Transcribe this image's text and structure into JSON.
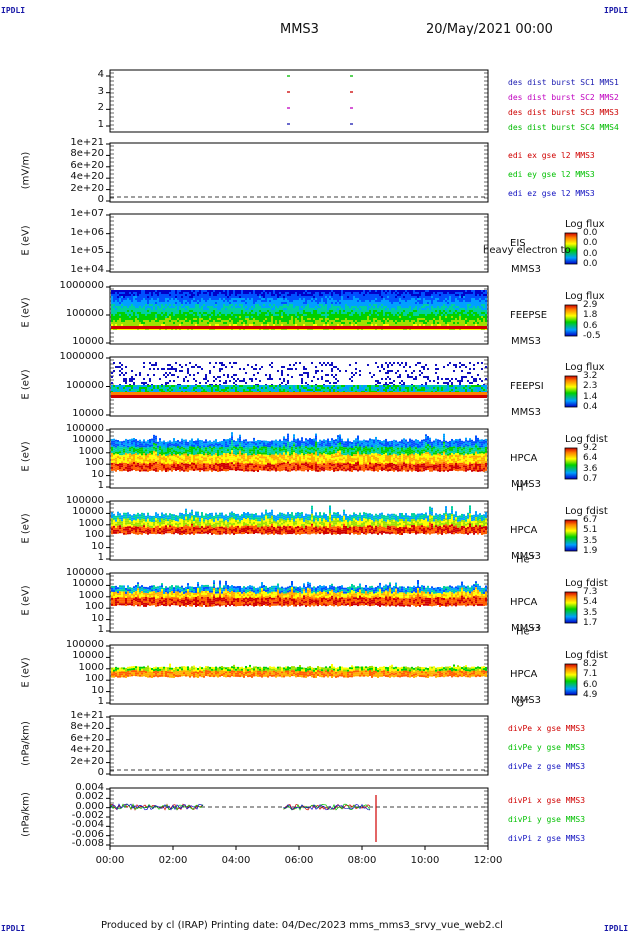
{
  "corners": {
    "tl": "IPDLI",
    "tr": "IPDLI",
    "bl": "IPDLI",
    "br": "IPDLI"
  },
  "header": {
    "spacecraft": "MMS3",
    "datetime": "20/May/2021 00:00"
  },
  "footer": {
    "text": "Produced by cl (IRAP)    Printing date: 04/Dec/2023    mms_mms3_srvy_vue_web2.cl"
  },
  "x_ticks": [
    "00:00",
    "02:00",
    "04:00",
    "06:00",
    "08:00",
    "10:00",
    "12:00"
  ],
  "colors": {
    "c1": "#1a1ab0",
    "c2": "#c000c0",
    "c3": "#cc0000",
    "c4": "#00bb00",
    "bx": "#d00000",
    "by": "#00c000",
    "bz": "#1010c0"
  },
  "panels": {
    "p1": {
      "ticks": [
        "4",
        "3",
        "2",
        "1"
      ],
      "legend": [
        "des dist burst SC1 MMS1",
        "des dist burst SC2 MMS2",
        "des dist burst SC3 MMS3",
        "des dist burst SC4 MMS4"
      ]
    },
    "p2": {
      "ylabel": "(mV/m)",
      "ticks": [
        "1e+21",
        "8e+20",
        "6e+20",
        "4e+20",
        "2e+20",
        "0"
      ],
      "legend": [
        "edi ex gse l2 MMS3",
        "edi ey gse l2 MMS3",
        "edi ez gse l2 MMS3"
      ]
    },
    "p3": {
      "ylabel": "E (eV)",
      "ticks": [
        "1e+07",
        "1e+06",
        "1e+05",
        "1e+04"
      ],
      "label1": "EIS",
      "label2": "MMS3",
      "overlay": "heavy electron to",
      "cbtitle": "Log flux",
      "cbvals": [
        "0.0",
        "0.0",
        "0.0",
        "0.0"
      ]
    },
    "p4": {
      "ylabel": "E (eV)",
      "ticks": [
        "1000000",
        "100000",
        "10000"
      ],
      "label1": "FEEPSE",
      "label2": "MMS3",
      "cbtitle": "Log flux",
      "cbvals": [
        "2.9",
        "1.8",
        "0.6",
        "-0.5"
      ]
    },
    "p5": {
      "ylabel": "E (eV)",
      "ticks": [
        "1000000",
        "100000",
        "10000"
      ],
      "label1": "FEEPSI",
      "label2": "MMS3",
      "cbtitle": "Log flux",
      "cbvals": [
        "3.2",
        "2.3",
        "1.4",
        "0.4"
      ]
    },
    "p6": {
      "ylabel": "E (eV)",
      "ticks": [
        "100000",
        "10000",
        "1000",
        "100",
        "10",
        "1"
      ],
      "label1": "HPCA",
      "label2": "MMS3",
      "species": "H",
      "sup": "+",
      "cbtitle": "Log fdist",
      "cbvals": [
        "9.2",
        "6.4",
        "3.6",
        "0.7"
      ]
    },
    "p7": {
      "ylabel": "E (eV)",
      "ticks": [
        "100000",
        "10000",
        "1000",
        "100",
        "10",
        "1"
      ],
      "label1": "HPCA",
      "label2": "MMS3",
      "species": "He",
      "sup": "+",
      "cbtitle": "Log fdist",
      "cbvals": [
        "6.7",
        "5.1",
        "3.5",
        "1.9"
      ]
    },
    "p8": {
      "ylabel": "E (eV)",
      "ticks": [
        "100000",
        "10000",
        "1000",
        "100",
        "10",
        "1"
      ],
      "label1": "HPCA",
      "label2": "MMS3",
      "species": "He",
      "sup": "++",
      "cbtitle": "Log fdist",
      "cbvals": [
        "7.3",
        "5.4",
        "3.5",
        "1.7"
      ]
    },
    "p9": {
      "ylabel": "E (eV)",
      "ticks": [
        "100000",
        "10000",
        "1000",
        "100",
        "10",
        "1"
      ],
      "label1": "HPCA",
      "label2": "MMS3",
      "species": "O",
      "sup": "+",
      "cbtitle": "Log fdist",
      "cbvals": [
        "8.2",
        "7.1",
        "6.0",
        "4.9"
      ]
    },
    "p10": {
      "ylabel": "(nPa/km)",
      "ticks": [
        "1e+21",
        "8e+20",
        "6e+20",
        "4e+20",
        "2e+20",
        "0"
      ],
      "legend": [
        "divPe x gse MMS3",
        "divPe y gse MMS3",
        "divPe z gse MMS3"
      ]
    },
    "p11": {
      "ylabel": "(nPa/km)",
      "ticks": [
        "0.004",
        "0.002",
        "0.000",
        "-0.002",
        "-0.004",
        "-0.006",
        "-0.008"
      ],
      "legend": [
        "divPi x gse MMS3",
        "divPi y gse MMS3",
        "divPi z gse MMS3"
      ]
    }
  },
  "chart_data": [
    {
      "type": "scatter",
      "title": "des dist burst",
      "ylim": [
        0.5,
        4.5
      ],
      "series": [
        {
          "name": "des dist burst SC1 MMS1",
          "x": [
            "05:40",
            "07:40"
          ],
          "values": [
            1,
            1
          ]
        },
        {
          "name": "des dist burst SC2 MMS2",
          "x": [
            "05:40",
            "07:40"
          ],
          "values": [
            2,
            2
          ]
        },
        {
          "name": "des dist burst SC3 MMS3",
          "x": [
            "05:40",
            "07:40"
          ],
          "values": [
            3,
            3
          ]
        },
        {
          "name": "des dist burst SC4 MMS4",
          "x": [
            "05:40",
            "07:40"
          ],
          "values": [
            4,
            4
          ]
        }
      ]
    },
    {
      "type": "line",
      "ylabel": "(mV/m)",
      "ylim": [
        0,
        1e+21
      ],
      "series": []
    },
    {
      "type": "heatmap",
      "ylabel": "E (eV)",
      "ylim": [
        10000,
        10000000
      ],
      "colorbar": [
        0.0,
        0.0
      ]
    },
    {
      "type": "heatmap",
      "ylabel": "E (eV)",
      "ylim": [
        10000,
        1000000
      ],
      "colorbar": [
        -0.5,
        2.9
      ]
    },
    {
      "type": "heatmap",
      "ylabel": "E (eV)",
      "ylim": [
        10000,
        1000000
      ],
      "colorbar": [
        0.4,
        3.2
      ]
    },
    {
      "type": "heatmap",
      "ylabel": "E (eV)",
      "ylim": [
        1,
        100000
      ],
      "colorbar": [
        0.7,
        9.2
      ]
    },
    {
      "type": "heatmap",
      "ylabel": "E (eV)",
      "ylim": [
        1,
        100000
      ],
      "colorbar": [
        1.9,
        6.7
      ]
    },
    {
      "type": "heatmap",
      "ylabel": "E (eV)",
      "ylim": [
        1,
        100000
      ],
      "colorbar": [
        1.7,
        7.3
      ]
    },
    {
      "type": "heatmap",
      "ylabel": "E (eV)",
      "ylim": [
        1,
        100000
      ],
      "colorbar": [
        4.9,
        8.2
      ]
    },
    {
      "type": "line",
      "ylabel": "(nPa/km)",
      "ylim": [
        0,
        1e+21
      ],
      "series": []
    },
    {
      "type": "line",
      "ylabel": "(nPa/km)",
      "ylim": [
        -0.009,
        0.005
      ],
      "series": [
        {
          "name": "divPi x gse MMS3",
          "x": [
            "00:00",
            "03:00",
            "05:30",
            "08:30"
          ],
          "values": [
            0.0,
            0.0,
            0.0,
            -0.008
          ]
        },
        {
          "name": "divPi y gse MMS3",
          "x": [
            "00:00",
            "03:00",
            "05:30",
            "08:30"
          ],
          "values": [
            0.0,
            0.0,
            0.0,
            0.0
          ]
        },
        {
          "name": "divPi z gse MMS3",
          "x": [
            "00:00",
            "03:00",
            "05:30",
            "08:30"
          ],
          "values": [
            0.0,
            0.0,
            0.0,
            0.0
          ]
        }
      ]
    }
  ]
}
